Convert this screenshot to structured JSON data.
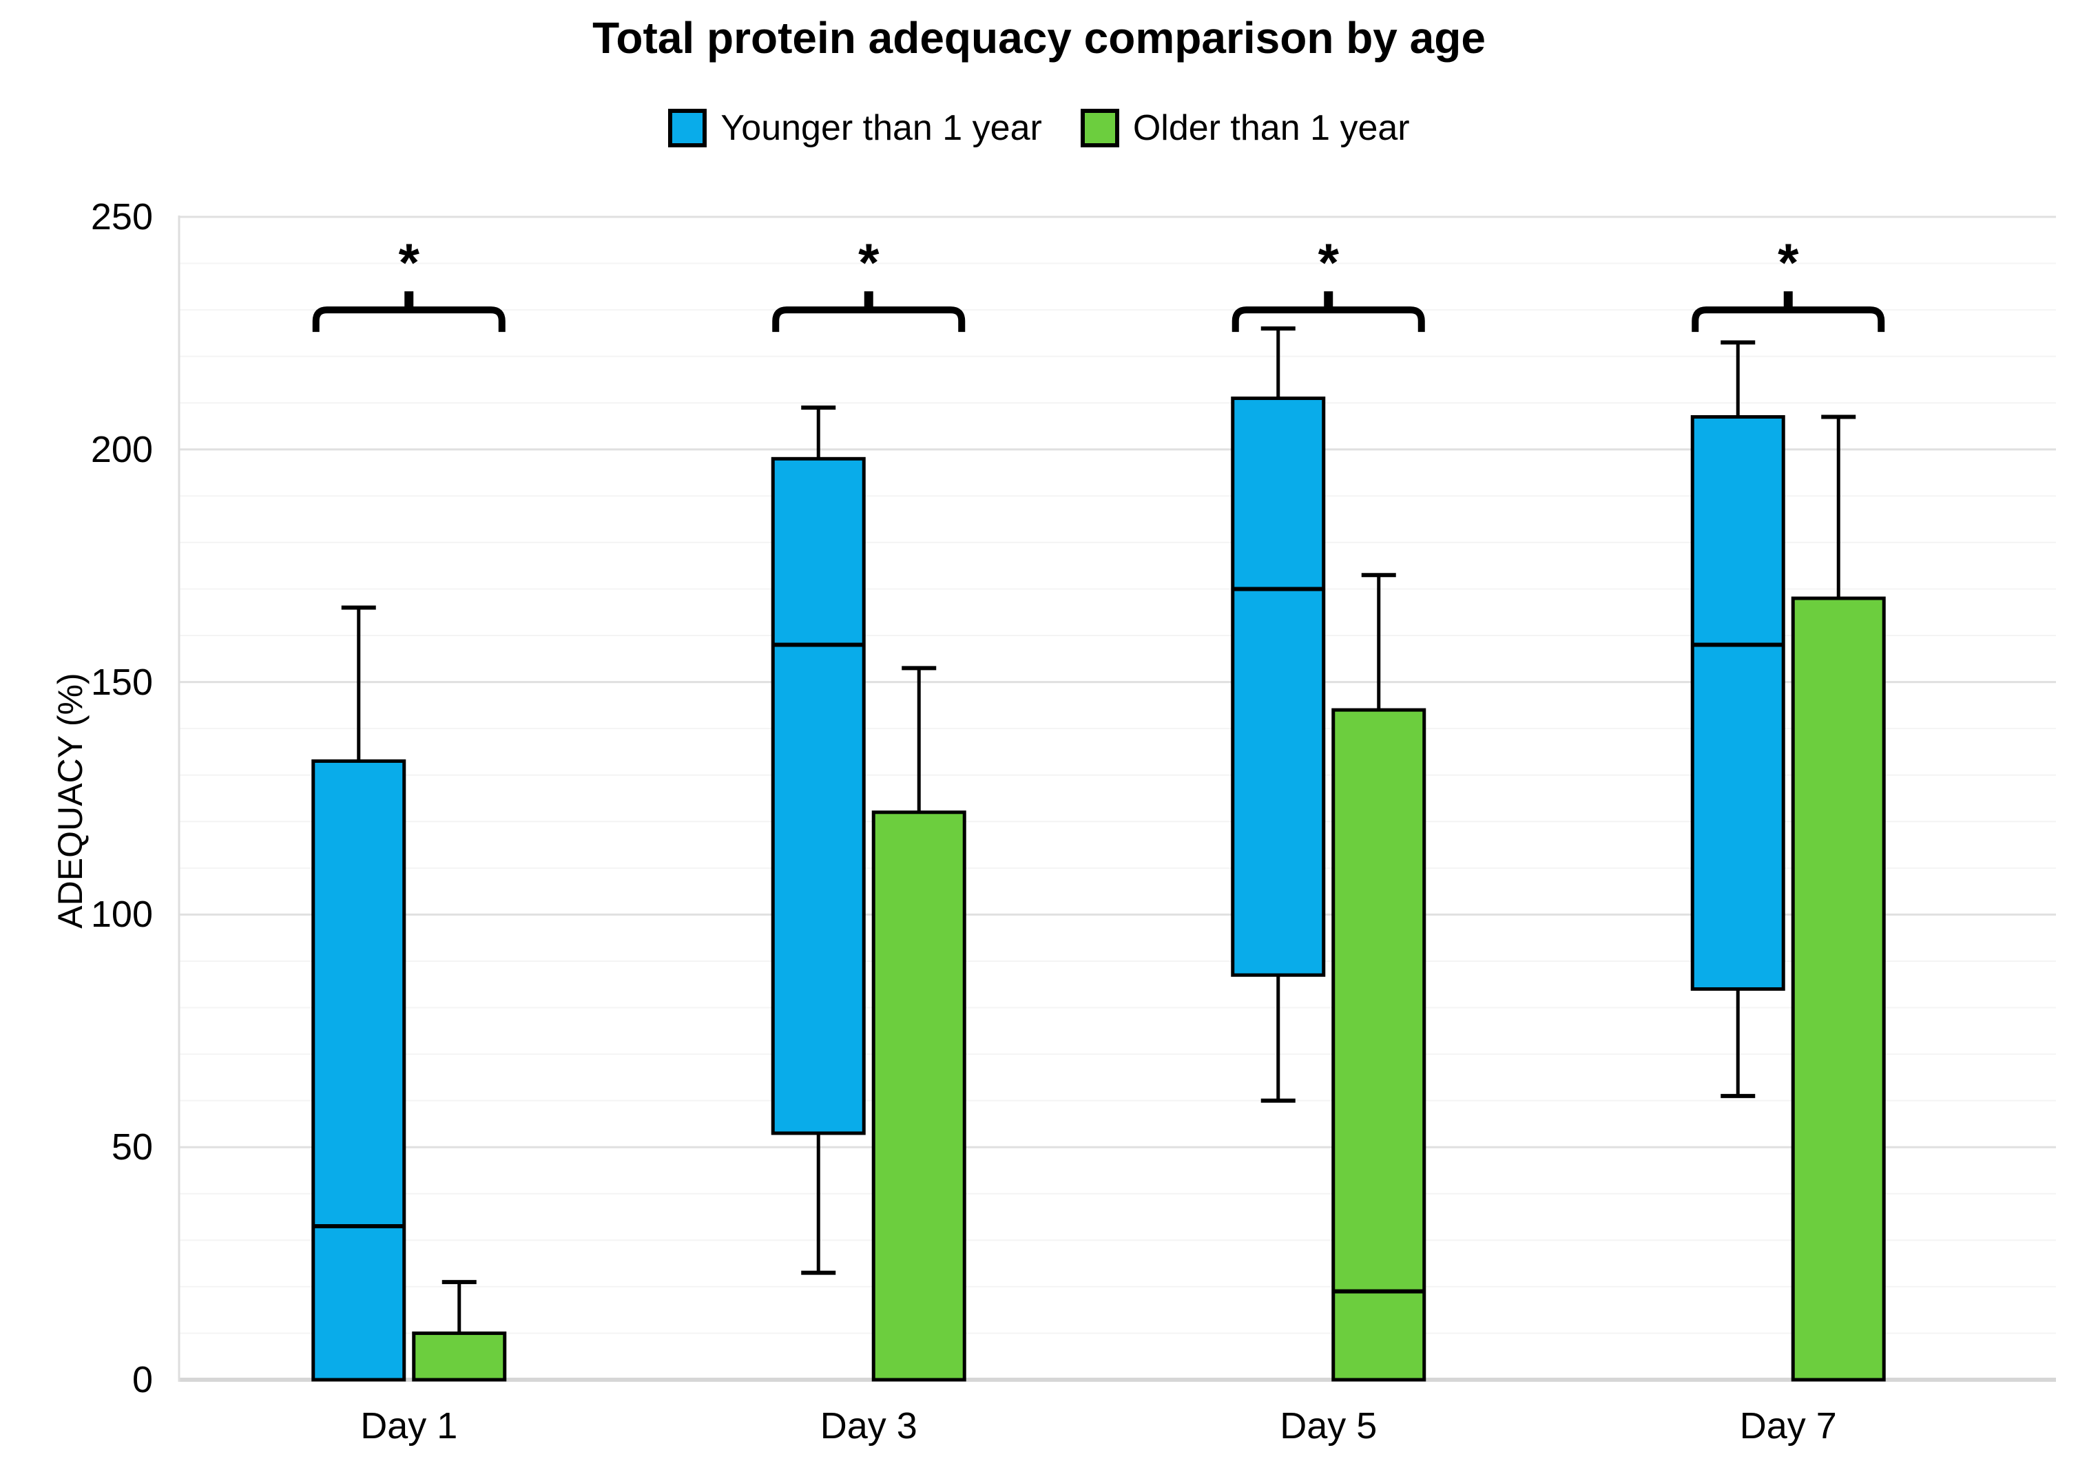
{
  "title": "Total protein adequacy comparison by age",
  "legend": [
    {
      "label": "Younger than 1 year",
      "color": "#09ACEA",
      "swatch_icon": "blue-square-icon"
    },
    {
      "label": "Older than 1 year",
      "color": "#6CCE3E",
      "swatch_icon": "green-square-icon"
    }
  ],
  "y_axis": {
    "title": "ADEQUACY (%)",
    "tick_labels": [
      "0",
      "50",
      "100",
      "150",
      "200",
      "250"
    ],
    "tick_values": [
      0,
      50,
      100,
      150,
      200,
      250
    ],
    "minor_step": 10
  },
  "x_axis": {
    "tick_labels": [
      "Day 1",
      "Day 3",
      "Day 5",
      "Day 7"
    ]
  },
  "chart_data": {
    "type": "box",
    "title": "Total protein adequacy comparison by age",
    "xlabel": "",
    "ylabel": "ADEQUACY (%)",
    "ylim": [
      0,
      250
    ],
    "grid": "horizontal-minor-and-major",
    "legend_position": "top-center",
    "categories": [
      "Day 1",
      "Day 3",
      "Day 5",
      "Day 7"
    ],
    "series": [
      {
        "name": "Younger than 1 year",
        "color": "#09ACEA",
        "boxes": [
          {
            "category": "Day 1",
            "q1": 0,
            "median": 33,
            "q3": 133,
            "whisker_low": null,
            "whisker_high": 166
          },
          {
            "category": "Day 3",
            "q1": 53,
            "median": 158,
            "q3": 198,
            "whisker_low": 23,
            "whisker_high": 209
          },
          {
            "category": "Day 5",
            "q1": 87,
            "median": 170,
            "q3": 211,
            "whisker_low": 60,
            "whisker_high": 226
          },
          {
            "category": "Day 7",
            "q1": 84,
            "median": 158,
            "q3": 207,
            "whisker_low": 61,
            "whisker_high": 223
          }
        ]
      },
      {
        "name": "Older than 1 year",
        "color": "#6CCE3E",
        "boxes": [
          {
            "category": "Day 1",
            "q1": 0,
            "median": null,
            "q3": 10,
            "whisker_low": null,
            "whisker_high": 21
          },
          {
            "category": "Day 3",
            "q1": 0,
            "median": null,
            "q3": 122,
            "whisker_low": null,
            "whisker_high": 153
          },
          {
            "category": "Day 5",
            "q1": 0,
            "median": 19,
            "q3": 144,
            "whisker_low": null,
            "whisker_high": 173
          },
          {
            "category": "Day 7",
            "q1": 0,
            "median": null,
            "q3": 168,
            "whisker_low": null,
            "whisker_high": 207
          }
        ]
      }
    ],
    "significance_markers": [
      {
        "category": "Day 1",
        "label": "*",
        "bracket_value": 230
      },
      {
        "category": "Day 3",
        "label": "*",
        "bracket_value": 230
      },
      {
        "category": "Day 5",
        "label": "*",
        "bracket_value": 230
      },
      {
        "category": "Day 7",
        "label": "*",
        "bracket_value": 230
      }
    ],
    "colors": {
      "box_border": "#000000",
      "median_line": "#000000",
      "whisker": "#000000",
      "gridline_minor": "#F4F4F4",
      "gridline_major": "#E0E0E0",
      "baseline": "#D6D6D6",
      "axis_line": "#DEDEDE"
    }
  }
}
